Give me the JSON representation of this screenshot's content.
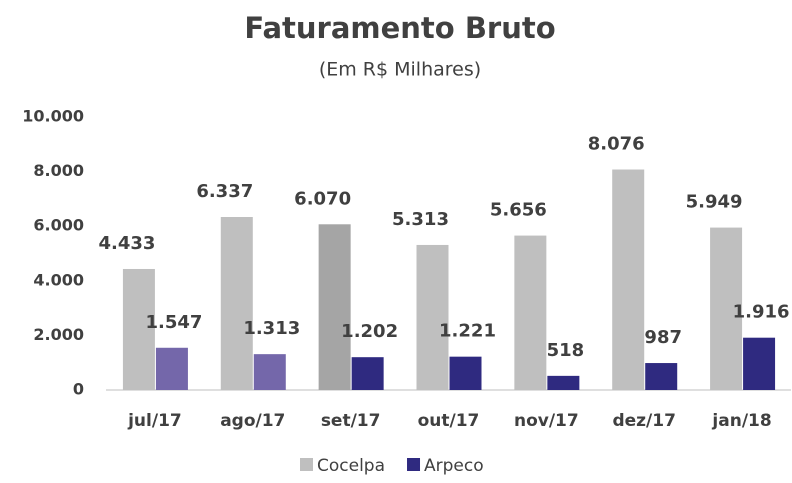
{
  "chart_data": {
    "type": "bar",
    "title": "Faturamento Bruto",
    "subtitle": "(Em R$ Milhares)",
    "categories": [
      "jul/17",
      "ago/17",
      "set/17",
      "out/17",
      "nov/17",
      "dez/17",
      "jan/18"
    ],
    "series": [
      {
        "name": "Cocelpa",
        "color": "#bfbfbf",
        "colors": [
          "#bfbfbf",
          "#bfbfbf",
          "#a5a5a5",
          "#bfbfbf",
          "#bfbfbf",
          "#bfbfbf",
          "#bfbfbf"
        ],
        "values": [
          4433,
          6337,
          6070,
          5313,
          5656,
          8076,
          5949
        ],
        "value_labels": [
          "4.433",
          "6.337",
          "6.070",
          "5.313",
          "5.656",
          "8.076",
          "5.949"
        ]
      },
      {
        "name": "Arpeco",
        "color": "#2f2a80",
        "colors": [
          "#7467aa",
          "#7467aa",
          "#2f2a80",
          "#2f2a80",
          "#2f2a80",
          "#2f2a80",
          "#2f2a80"
        ],
        "values": [
          1547,
          1313,
          1202,
          1221,
          518,
          987,
          1916
        ],
        "value_labels": [
          "1.547",
          "1.313",
          "1.202",
          "1.221",
          "518",
          "987",
          "1.916"
        ]
      }
    ],
    "ylim": [
      0,
      10000
    ],
    "yticks": [
      0,
      {
        "value": 2000,
        "label": "2.000"
      },
      {
        "value": 4000,
        "label": "4.000"
      },
      {
        "value": 6000,
        "label": "6.000"
      },
      {
        "value": 8000,
        "label": "8.000"
      },
      {
        "value": 10000,
        "label": "10.000"
      }
    ],
    "grid": false,
    "legend": "bottom"
  }
}
